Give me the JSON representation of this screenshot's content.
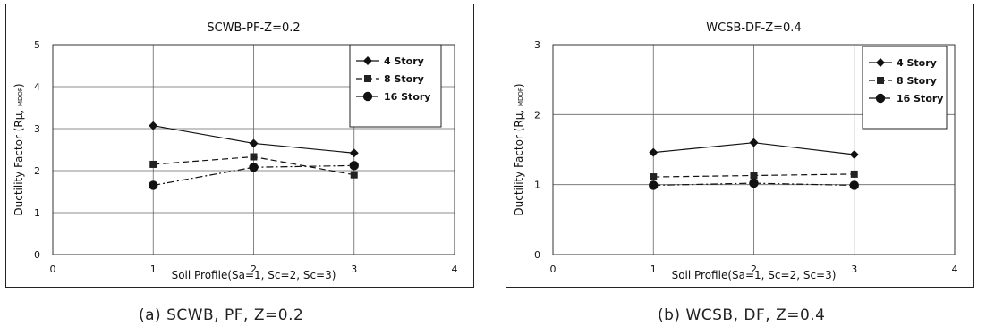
{
  "charts": [
    {
      "title": "SCWB-PF-Z=0.2",
      "caption": "(a) SCWB, PF, Z=0.2"
    },
    {
      "title": "WCSB-DF-Z=0.4",
      "caption": "(b) WCSB, DF, Z=0.4"
    }
  ],
  "chart_data": [
    {
      "type": "line",
      "title": "SCWB-PF-Z=0.2",
      "xlabel": "Soil Profile(Sa=1, Sc=2, Sc=3)",
      "ylabel_main": "Ductility Factor (Rμ,",
      "ylabel_sub": "MDOF",
      "ylabel_close": ")",
      "xlim": [
        0,
        4
      ],
      "ylim": [
        0,
        5
      ],
      "x_ticks": [
        0,
        1,
        2,
        3,
        4
      ],
      "y_ticks": [
        0,
        1,
        2,
        3,
        4,
        5
      ],
      "grid": true,
      "legend_position": "top-right",
      "x": [
        1,
        2,
        3
      ],
      "series": [
        {
          "name": "4 Story",
          "values": [
            3.07,
            2.65,
            2.42
          ],
          "marker": "diamond",
          "dash": "solid"
        },
        {
          "name": "8 Story",
          "values": [
            2.15,
            2.33,
            1.9
          ],
          "marker": "square",
          "dash": "dashed"
        },
        {
          "name": "16 Story",
          "values": [
            1.65,
            2.08,
            2.12
          ],
          "marker": "circle",
          "dash": "dashdot"
        }
      ]
    },
    {
      "type": "line",
      "title": "WCSB-DF-Z=0.4",
      "xlabel": "Soil Profile(Sa=1, Sc=2, Sc=3)",
      "ylabel_main": "Ductility Factor (Rμ,",
      "ylabel_sub": "MDOF",
      "ylabel_close": ")",
      "xlim": [
        0,
        4
      ],
      "ylim": [
        0,
        3
      ],
      "x_ticks": [
        0,
        1,
        2,
        3,
        4
      ],
      "y_ticks": [
        0,
        1,
        2,
        3
      ],
      "grid": true,
      "legend_position": "top-right",
      "x": [
        1,
        2,
        3
      ],
      "series": [
        {
          "name": "4 Story",
          "values": [
            1.46,
            1.6,
            1.43
          ],
          "marker": "diamond",
          "dash": "solid"
        },
        {
          "name": "8 Story",
          "values": [
            1.11,
            1.13,
            1.15
          ],
          "marker": "square",
          "dash": "dashed"
        },
        {
          "name": "16 Story",
          "values": [
            0.99,
            1.02,
            0.99
          ],
          "marker": "circle",
          "dash": "dashdot"
        }
      ]
    }
  ]
}
